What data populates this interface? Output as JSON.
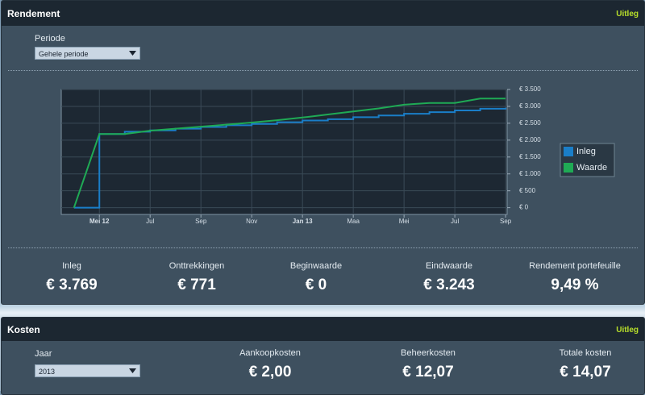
{
  "rendement": {
    "title": "Rendement",
    "link": "Uitleg",
    "periode_label": "Periode",
    "periode_select": "Gehele periode",
    "chart": {
      "type": "line",
      "grid": true,
      "legend": "right",
      "x": [
        -1,
        0,
        1,
        2,
        3,
        4,
        5,
        6,
        7,
        8,
        9,
        10,
        11,
        12,
        13,
        14,
        15,
        16
      ],
      "xlim": [
        -1.5,
        16.06
      ],
      "ylim": [
        -200,
        3500
      ],
      "xticks": [
        {
          "value": 0,
          "label": "Mei 12"
        },
        {
          "value": 2,
          "label": "Jul"
        },
        {
          "value": 4,
          "label": "Sep"
        },
        {
          "value": 6,
          "label": "Nov"
        },
        {
          "value": 8,
          "label": "Jan 13"
        },
        {
          "value": 10,
          "label": "Maa"
        },
        {
          "value": 12,
          "label": "Mei"
        },
        {
          "value": 14,
          "label": "Jul"
        },
        {
          "value": 16,
          "label": "Sep"
        }
      ],
      "yticks": [
        {
          "value": 0,
          "label": "€ 0"
        },
        {
          "value": 500,
          "label": "€ 500"
        },
        {
          "value": 1000,
          "label": "€ 1.000"
        },
        {
          "value": 1500,
          "label": "€ 1.500"
        },
        {
          "value": 2000,
          "label": "€ 2.000"
        },
        {
          "value": 2500,
          "label": "€ 2.500"
        },
        {
          "value": 3000,
          "label": "€ 3.000"
        },
        {
          "value": 3500,
          "label": "€ 3.500"
        }
      ],
      "series": [
        {
          "name": "Inleg",
          "color": "#1a7ec8",
          "step": true,
          "values": [
            0,
            2180,
            2250,
            2290,
            2340,
            2390,
            2440,
            2480,
            2530,
            2580,
            2620,
            2680,
            2730,
            2780,
            2830,
            2880,
            2930,
            2960
          ]
        },
        {
          "name": "Waarde",
          "color": "#1faa55",
          "step": false,
          "values": [
            0,
            2180,
            2180,
            2280,
            2340,
            2400,
            2460,
            2520,
            2590,
            2670,
            2760,
            2850,
            2940,
            3050,
            3100,
            3100,
            3230,
            3230
          ]
        }
      ]
    },
    "stats": [
      {
        "label": "Inleg",
        "value": "€ 3.769"
      },
      {
        "label": "Onttrekkingen",
        "value": "€ 771"
      },
      {
        "label": "Beginwaarde",
        "value": "€ 0"
      },
      {
        "label": "Eindwaarde",
        "value": "€ 3.243"
      },
      {
        "label": "Rendement portefeuille",
        "value": "9,49 %"
      }
    ]
  },
  "kosten": {
    "title": "Kosten",
    "link": "Uitleg",
    "jaar_label": "Jaar",
    "jaar_select": "2013",
    "stats": [
      {
        "label": "Aankoopkosten",
        "value": "€ 2,00"
      },
      {
        "label": "Beheerkosten",
        "value": "€ 12,07"
      },
      {
        "label": "Totale kosten",
        "value": "€ 14,07"
      }
    ]
  }
}
